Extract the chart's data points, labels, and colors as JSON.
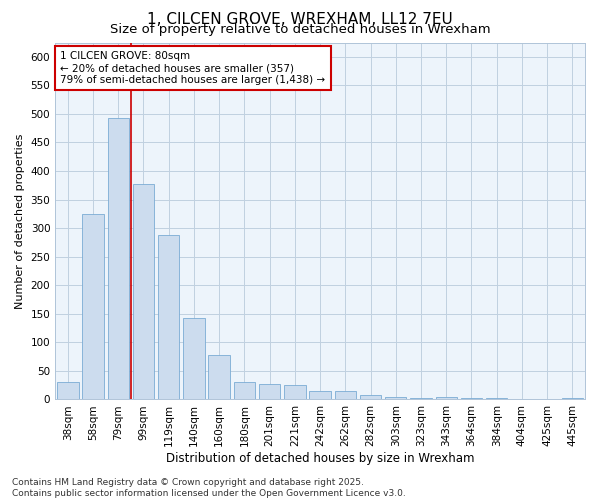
{
  "title": "1, CILCEN GROVE, WREXHAM, LL12 7EU",
  "subtitle": "Size of property relative to detached houses in Wrexham",
  "xlabel": "Distribution of detached houses by size in Wrexham",
  "ylabel": "Number of detached properties",
  "categories": [
    "38sqm",
    "58sqm",
    "79sqm",
    "99sqm",
    "119sqm",
    "140sqm",
    "160sqm",
    "180sqm",
    "201sqm",
    "221sqm",
    "242sqm",
    "262sqm",
    "282sqm",
    "303sqm",
    "323sqm",
    "343sqm",
    "364sqm",
    "384sqm",
    "404sqm",
    "425sqm",
    "445sqm"
  ],
  "values": [
    30,
    325,
    493,
    378,
    288,
    143,
    77,
    31,
    27,
    25,
    14,
    14,
    7,
    5,
    3,
    4,
    2,
    2,
    1,
    1,
    3
  ],
  "bar_color": "#ccdcee",
  "bar_edge_color": "#7aacd4",
  "vline_x": 2.5,
  "vline_color": "#cc0000",
  "annotation_text": "1 CILCEN GROVE: 80sqm\n← 20% of detached houses are smaller (357)\n79% of semi-detached houses are larger (1,438) →",
  "annotation_box_color": "#ffffff",
  "annotation_box_edge": "#cc0000",
  "ylim": [
    0,
    625
  ],
  "yticks": [
    0,
    50,
    100,
    150,
    200,
    250,
    300,
    350,
    400,
    450,
    500,
    550,
    600
  ],
  "grid_color": "#c0d0e0",
  "background_color": "#ddeef8",
  "plot_bg": "#edf4fb",
  "footer": "Contains HM Land Registry data © Crown copyright and database right 2025.\nContains public sector information licensed under the Open Government Licence v3.0.",
  "title_fontsize": 11,
  "subtitle_fontsize": 9.5,
  "xlabel_fontsize": 8.5,
  "ylabel_fontsize": 8,
  "tick_fontsize": 7.5,
  "annot_fontsize": 7.5,
  "footer_fontsize": 6.5
}
